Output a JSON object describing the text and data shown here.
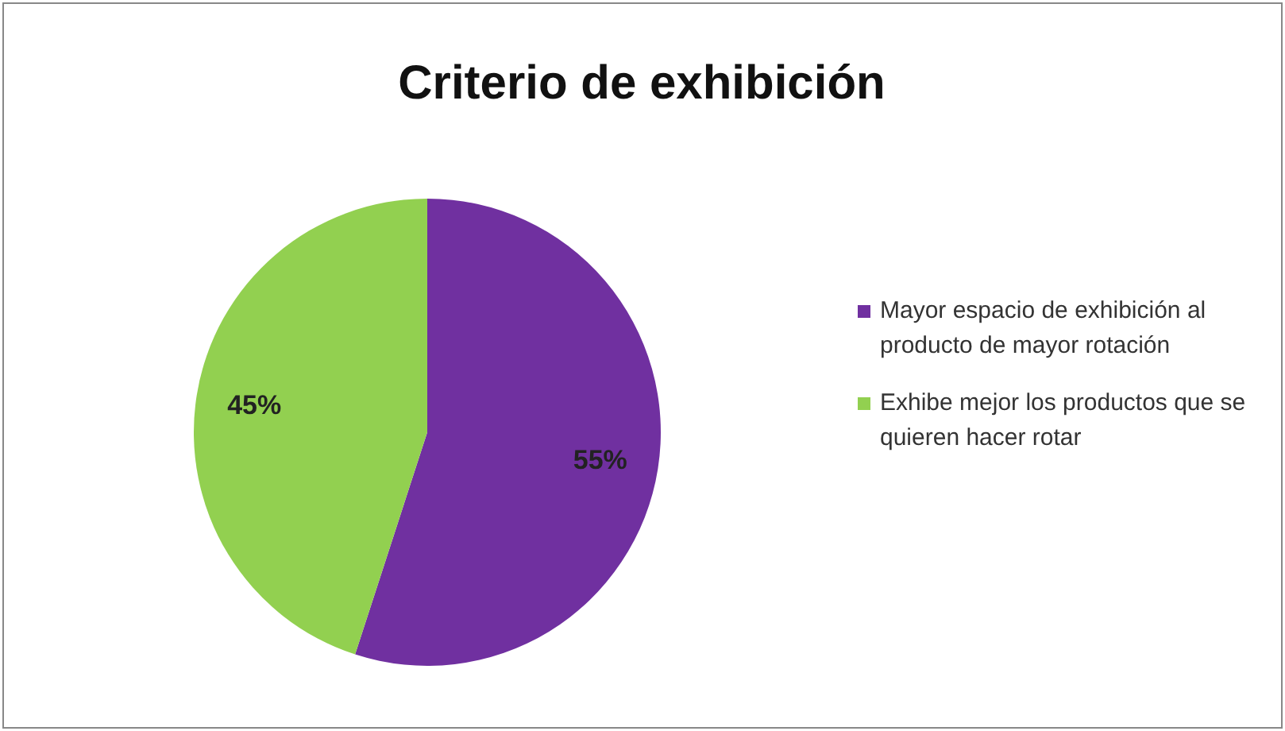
{
  "chart_data": {
    "type": "pie",
    "title": "Criterio de exhibición",
    "categories": [
      "Mayor espacio de exhibición al producto de mayor rotación",
      "Exhibe mejor los productos que se quieren hacer rotar"
    ],
    "values": [
      55,
      45
    ],
    "colors": [
      "#7030a0",
      "#92d050"
    ],
    "value_labels": [
      "55%",
      "45%"
    ],
    "legend": "right"
  }
}
